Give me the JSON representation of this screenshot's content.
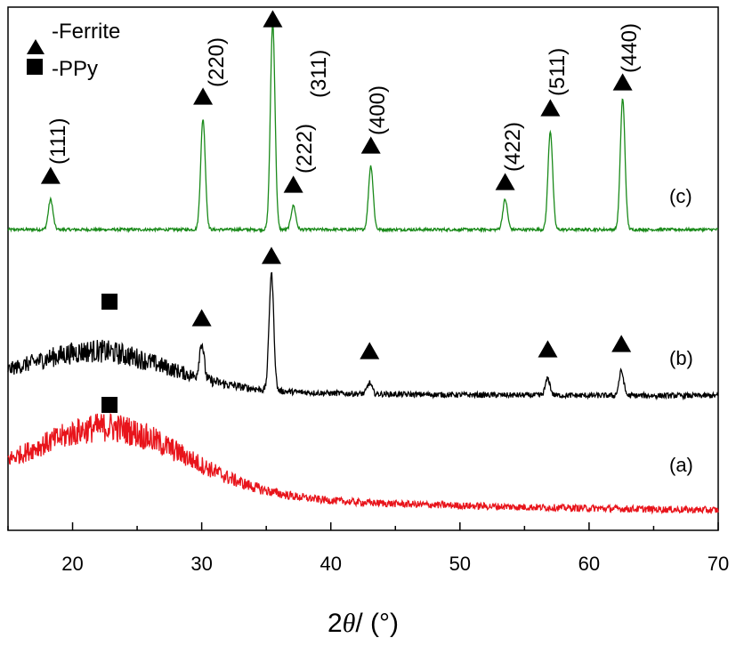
{
  "chart_data": {
    "type": "line",
    "title": "",
    "xlabel": {
      "prefix": "2",
      "theta": "θ",
      "suffix": "/ (°)"
    },
    "ylabel": "",
    "xlim": [
      15,
      70
    ],
    "xticks": [
      20,
      30,
      40,
      50,
      60,
      70
    ],
    "yticks": [],
    "grid": false,
    "legend_position": "top-left",
    "legend": [
      {
        "marker": "triangle",
        "label": "-Ferrite"
      },
      {
        "marker": "square",
        "label": "-PPy"
      }
    ],
    "series": [
      {
        "name": "(c)",
        "color": "#1a8a1a",
        "baseline": 0.0,
        "noise": 0.012,
        "peaks": [
          {
            "x": 18.3,
            "height": 0.25
          },
          {
            "x": 30.1,
            "height": 0.92
          },
          {
            "x": 35.5,
            "height": 1.72
          },
          {
            "x": 37.1,
            "height": 0.2
          },
          {
            "x": 43.1,
            "height": 0.53
          },
          {
            "x": 53.5,
            "height": 0.25
          },
          {
            "x": 57.0,
            "height": 0.82
          },
          {
            "x": 62.6,
            "height": 1.09
          }
        ],
        "peak_labels": [
          {
            "x": 18.3,
            "text": "(111)"
          },
          {
            "x": 30.1,
            "text": "(220)"
          },
          {
            "x": 37.1,
            "text": "(222)"
          },
          {
            "x": 43.1,
            "text": "(400)"
          },
          {
            "x": 53.5,
            "text": "(422)"
          },
          {
            "x": 57.0,
            "text": "(511)"
          },
          {
            "x": 62.6,
            "text": "(440)"
          },
          {
            "x": 38.0,
            "text": "(311)"
          }
        ],
        "ferrite_markers": [
          18.3,
          30.1,
          35.5,
          37.1,
          43.1,
          53.5,
          57.0,
          62.6
        ],
        "ppy_markers": []
      },
      {
        "name": "(b)",
        "color": "#000000",
        "baseline": 0.0,
        "noise": 0.05,
        "hump": {
          "center": 22,
          "width": 5.5,
          "height": 0.3
        },
        "peaks": [
          {
            "x": 30.0,
            "height": 0.32
          },
          {
            "x": 35.4,
            "height": 1.05
          },
          {
            "x": 43.0,
            "height": 0.1
          },
          {
            "x": 56.8,
            "height": 0.15
          },
          {
            "x": 62.5,
            "height": 0.22
          }
        ],
        "ferrite_markers": [
          30.0,
          35.4,
          43.0,
          56.8,
          62.5
        ],
        "ppy_markers": [
          23.0
        ]
      },
      {
        "name": "(a)",
        "color": "#e8141b",
        "baseline": 0.0,
        "noise": 0.05,
        "hump": {
          "center": 23,
          "width": 6.0,
          "height": 0.4
        },
        "peaks": [],
        "ferrite_markers": [],
        "ppy_markers": [
          23.0
        ]
      }
    ]
  }
}
